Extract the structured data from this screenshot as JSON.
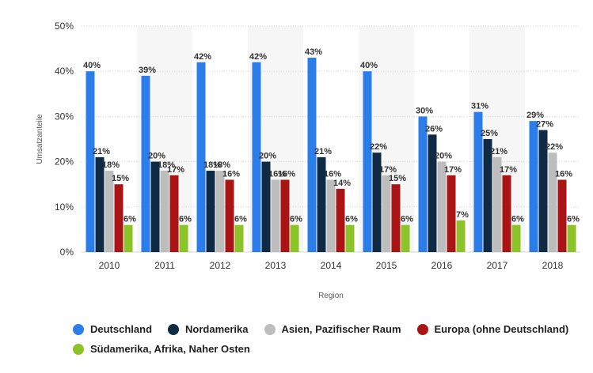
{
  "chart_data": {
    "type": "bar",
    "xlabel": "Region",
    "ylabel": "Umsatzanteile",
    "ylim": [
      0,
      50
    ],
    "yticks": [
      "0%",
      "10%",
      "20%",
      "30%",
      "40%",
      "50%"
    ],
    "categories": [
      "2010",
      "2011",
      "2012",
      "2013",
      "2014",
      "2015",
      "2016",
      "2017",
      "2018"
    ],
    "series": [
      {
        "name": "Deutschland",
        "color": "#2b7de9",
        "values": [
          40,
          39,
          42,
          42,
          43,
          40,
          30,
          31,
          29
        ],
        "labels": [
          "40%",
          "39%",
          "42%",
          "42%",
          "43%",
          "40%",
          "30%",
          "31%",
          "29%"
        ]
      },
      {
        "name": "Nordamerika",
        "color": "#0f2a44",
        "values": [
          21,
          20,
          18,
          20,
          21,
          22,
          26,
          25,
          27
        ],
        "labels": [
          "21%",
          "20%",
          "18%",
          "20%",
          "21%",
          "22%",
          "26%",
          "25%",
          "27%"
        ]
      },
      {
        "name": "Asien, Pazifischer Raum",
        "color": "#bdbdbd",
        "values": [
          18,
          18,
          18,
          16,
          16,
          17,
          20,
          21,
          22
        ],
        "labels": [
          "18%",
          "18%",
          "18%",
          "16%",
          "16%",
          "17%",
          "20%",
          "21%",
          "22%"
        ]
      },
      {
        "name": "Europa (ohne Deutschland)",
        "color": "#aa1414",
        "values": [
          15,
          17,
          16,
          16,
          14,
          15,
          17,
          17,
          16
        ],
        "labels": [
          "15%",
          "17%",
          "16%",
          "16%",
          "14%",
          "15%",
          "17%",
          "17%",
          "16%"
        ]
      },
      {
        "name": "Südamerika, Afrika, Naher Osten",
        "color": "#8cc328",
        "values": [
          6,
          6,
          6,
          6,
          6,
          6,
          7,
          6,
          6
        ],
        "labels": [
          "6%",
          "6%",
          "6%",
          "6%",
          "6%",
          "6%",
          "7%",
          "6%",
          "6%"
        ]
      }
    ],
    "grid": true,
    "legend_position": "bottom"
  }
}
